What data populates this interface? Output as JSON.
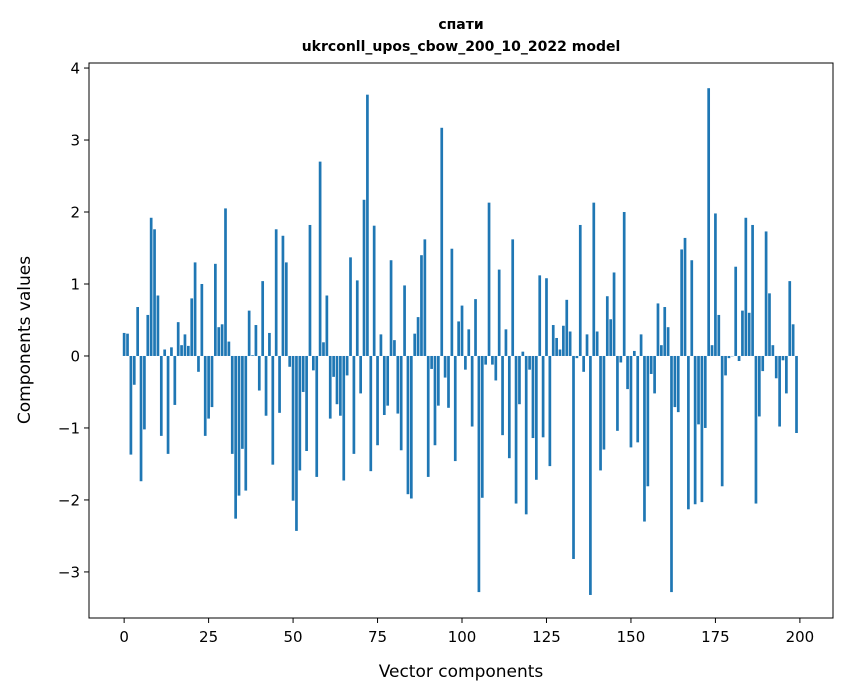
{
  "chart_data": {
    "type": "bar",
    "title": "спати",
    "subtitle": "ukrconll_upos_cbow_200_10_2022 model",
    "xlabel": "Vector components",
    "ylabel": "Components values",
    "xlim": [
      -10.4,
      209.8
    ],
    "ylim": [
      -3.64,
      4.07
    ],
    "xticks": [
      0,
      25,
      50,
      75,
      100,
      125,
      150,
      175,
      200
    ],
    "yticks": [
      -3,
      -2,
      -1,
      0,
      1,
      2,
      3,
      4
    ],
    "ytick_labels": [
      "−3",
      "−2",
      "−1",
      "0",
      "1",
      "2",
      "3",
      "4"
    ],
    "grid": false,
    "bar_color": "#1f77b4",
    "values": [
      0.32,
      0.31,
      -1.37,
      -0.4,
      0.68,
      -1.74,
      -1.02,
      0.57,
      1.92,
      1.76,
      0.84,
      -1.11,
      0.09,
      -1.36,
      0.12,
      -0.68,
      0.47,
      0.15,
      0.3,
      0.14,
      0.8,
      1.3,
      -0.22,
      1.0,
      -1.11,
      -0.87,
      -0.71,
      1.28,
      0.4,
      0.44,
      2.05,
      0.2,
      -1.36,
      -2.26,
      -1.94,
      -1.29,
      -1.87,
      0.63,
      0.01,
      0.43,
      -0.48,
      1.04,
      -0.83,
      0.32,
      -1.51,
      1.76,
      -0.79,
      1.67,
      1.3,
      -0.15,
      -2.01,
      -2.43,
      -1.59,
      -0.5,
      -1.32,
      1.82,
      -0.2,
      -1.68,
      2.7,
      0.19,
      0.84,
      -0.87,
      -0.29,
      -0.67,
      -0.83,
      -1.73,
      -0.27,
      1.37,
      -1.36,
      1.05,
      -0.52,
      2.17,
      3.63,
      -1.6,
      1.81,
      -1.24,
      0.3,
      -0.82,
      -0.69,
      1.33,
      0.22,
      -0.8,
      -1.31,
      0.98,
      -1.92,
      -1.98,
      0.31,
      0.54,
      1.4,
      1.62,
      -1.68,
      -0.18,
      -1.24,
      -0.69,
      3.17,
      -0.3,
      -0.72,
      1.49,
      -1.46,
      0.48,
      0.7,
      -0.19,
      0.37,
      -0.98,
      0.79,
      -3.28,
      -1.97,
      -0.12,
      2.13,
      -0.12,
      -0.34,
      1.2,
      -1.1,
      0.37,
      -1.42,
      1.62,
      -2.05,
      -0.67,
      0.06,
      -2.2,
      -0.19,
      -1.14,
      -1.72,
      1.12,
      -1.13,
      1.08,
      -1.53,
      0.43,
      0.25,
      0.09,
      0.42,
      0.78,
      0.34,
      -2.82,
      -0.03,
      1.82,
      -0.22,
      0.3,
      -3.32,
      2.13,
      0.34,
      -1.59,
      -1.3,
      0.83,
      0.51,
      1.16,
      -1.04,
      -0.09,
      2.0,
      -0.46,
      -1.27,
      0.07,
      -1.2,
      0.3,
      -2.3,
      -1.81,
      -0.25,
      -0.52,
      0.73,
      0.15,
      0.68,
      0.4,
      -3.28,
      -0.71,
      -0.78,
      1.48,
      1.64,
      -2.13,
      1.33,
      -2.06,
      -0.95,
      -2.03,
      -1.0,
      3.72,
      0.15,
      1.98,
      0.57,
      -1.81,
      -0.27,
      -0.03,
      0.0,
      1.24,
      -0.07,
      0.63,
      1.92,
      0.6,
      1.82,
      -2.05,
      -0.84,
      -0.21,
      1.73,
      0.87,
      0.15,
      -0.31,
      -0.98,
      -0.06,
      -0.52,
      1.04,
      0.44,
      -1.07
    ]
  }
}
